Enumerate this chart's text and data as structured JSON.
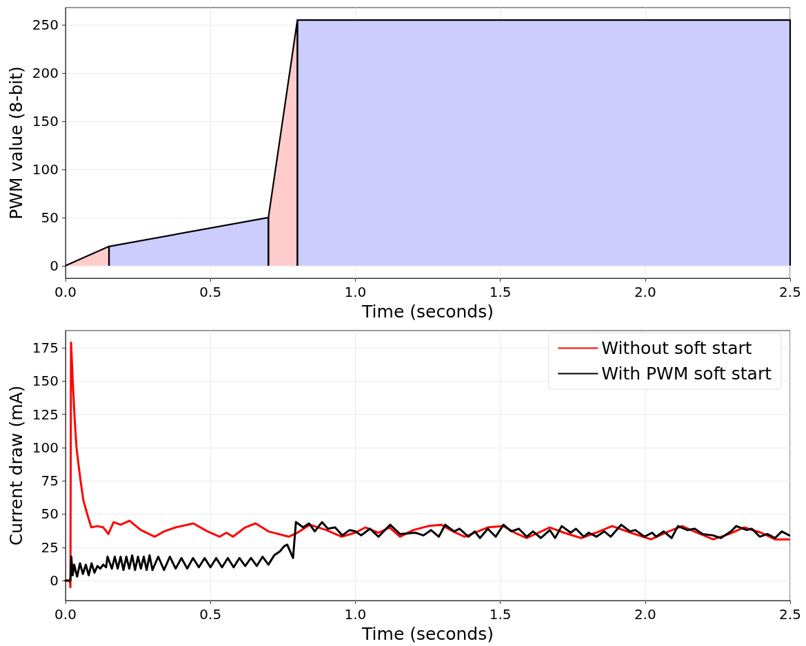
{
  "chart_data": [
    {
      "type": "area",
      "ylabel": "PWM value (8-bit)",
      "xlabel": "Time (seconds)",
      "xlim": [
        0,
        2.5
      ],
      "xticks": [
        {
          "value": 0,
          "label": "0.0"
        },
        0.5,
        {
          "value": 1,
          "label": "1.0"
        },
        1.5,
        {
          "value": 2,
          "label": "2.0"
        },
        2.5
      ],
      "ylim": [
        -13,
        268
      ],
      "yticks": [
        0,
        50,
        100,
        150,
        200,
        250
      ],
      "grid": true,
      "legend": false,
      "line_style": "solid",
      "series": [
        {
          "color": "#ffcccc",
          "x": [
            0,
            0.15,
            0.15
          ],
          "values": [
            0,
            20,
            0
          ]
        },
        {
          "color": "#ccccff",
          "x": [
            0.15,
            0.15,
            0.7,
            0.7
          ],
          "values": [
            0,
            20,
            50,
            0
          ]
        },
        {
          "color": "#ffcccc",
          "x": [
            0.7,
            0.7,
            0.8,
            0.8
          ],
          "values": [
            0,
            50,
            255,
            0
          ]
        },
        {
          "color": "#ccccff",
          "x": [
            0.8,
            0.8,
            2.5,
            2.5
          ],
          "values": [
            0,
            255,
            255,
            0
          ]
        }
      ]
    },
    {
      "type": "line",
      "ylabel": "Current draw (mA)",
      "xlabel": "Time (seconds)",
      "xlim": [
        0,
        2.5
      ],
      "xticks": [
        {
          "value": 0,
          "label": "0.0"
        },
        0.5,
        {
          "value": 1,
          "label": "1.0"
        },
        1.5,
        {
          "value": 2,
          "label": "2.0"
        },
        2.5
      ],
      "ylim": [
        -15,
        188
      ],
      "yticks": [
        0,
        25,
        50,
        75,
        100,
        125,
        150,
        175
      ],
      "grid": true,
      "legend": "top right",
      "line_style": "solid",
      "series": [
        {
          "name": "Without soft start",
          "color": "#ff0000",
          "x": [
            0,
            0.015,
            0.017,
            0.019,
            0.021,
            0.025,
            0.032,
            0.038,
            0.045,
            0.052,
            0.062,
            0.075,
            0.089,
            0.11,
            0.13,
            0.148,
            0.166,
            0.19,
            0.221,
            0.26,
            0.308,
            0.34,
            0.38,
            0.441,
            0.49,
            0.532,
            0.555,
            0.578,
            0.62,
            0.656,
            0.7,
            0.77,
            0.8,
            0.843,
            0.9,
            0.953,
            1.0,
            1.035,
            1.08,
            1.118,
            1.154,
            1.2,
            1.252,
            1.296,
            1.337,
            1.377,
            1.457,
            1.511,
            1.55,
            1.591,
            1.671,
            1.72,
            1.779,
            1.83,
            1.886,
            1.95,
            2.02,
            2.07,
            2.127,
            2.18,
            2.234,
            2.29,
            2.341,
            2.4,
            2.448,
            2.497
          ],
          "values": [
            0,
            0,
            -5,
            179,
            170,
            150,
            120,
            100,
            87,
            75,
            60,
            50,
            40,
            41,
            40,
            35,
            44,
            42,
            45,
            38,
            33,
            37,
            40,
            43,
            37,
            33,
            36,
            33,
            40,
            43,
            37,
            33,
            36,
            42,
            38,
            33,
            36,
            40,
            36,
            40,
            33,
            38,
            41,
            42,
            37,
            33,
            40,
            41,
            36,
            32,
            40,
            36,
            32,
            36,
            41,
            36,
            31,
            36,
            41,
            36,
            31,
            35,
            40,
            36,
            31,
            31
          ]
        },
        {
          "name": "With PWM soft start",
          "color": "#000000",
          "x": [
            0,
            0.017,
            0.02,
            0.025,
            0.03,
            0.04,
            0.05,
            0.06,
            0.07,
            0.08,
            0.09,
            0.1,
            0.11,
            0.12,
            0.13,
            0.14,
            0.145,
            0.16,
            0.17,
            0.18,
            0.19,
            0.2,
            0.21,
            0.22,
            0.23,
            0.24,
            0.25,
            0.26,
            0.27,
            0.28,
            0.29,
            0.3,
            0.32,
            0.34,
            0.36,
            0.38,
            0.4,
            0.42,
            0.44,
            0.46,
            0.48,
            0.5,
            0.52,
            0.54,
            0.56,
            0.58,
            0.6,
            0.62,
            0.64,
            0.66,
            0.68,
            0.7,
            0.72,
            0.74,
            0.755,
            0.765,
            0.775,
            0.785,
            0.795,
            0.82,
            0.84,
            0.86,
            0.885,
            0.905,
            0.93,
            0.955,
            0.98,
            1.0,
            1.02,
            1.05,
            1.08,
            1.12,
            1.154,
            1.207,
            1.235,
            1.261,
            1.288,
            1.31,
            1.341,
            1.359,
            1.39,
            1.412,
            1.43,
            1.457,
            1.484,
            1.511,
            1.538,
            1.564,
            1.591,
            1.613,
            1.64,
            1.671,
            1.689,
            1.712,
            1.743,
            1.761,
            1.788,
            1.805,
            1.832,
            1.859,
            1.881,
            1.917,
            1.948,
            1.966,
            1.997,
            2.024,
            2.038,
            2.064,
            2.091,
            2.113,
            2.145,
            2.171,
            2.198,
            2.234,
            2.261,
            2.296,
            2.314,
            2.35,
            2.368,
            2.395,
            2.421,
            2.448,
            2.471,
            2.497
          ],
          "values": [
            0,
            0,
            18,
            4,
            12,
            3,
            13,
            5,
            12,
            4,
            13,
            6,
            11,
            9,
            12,
            10,
            18,
            9,
            18,
            9,
            18,
            8,
            18,
            9,
            19,
            8,
            18,
            9,
            18,
            8,
            19,
            8,
            18,
            8,
            18,
            9,
            17,
            9,
            17,
            10,
            17,
            10,
            17,
            10,
            17,
            10,
            17,
            11,
            17,
            11,
            18,
            12,
            19,
            22,
            26,
            27,
            22,
            17,
            44,
            40,
            43,
            37,
            44,
            39,
            40,
            34,
            38,
            37,
            34,
            39,
            33,
            42,
            35,
            36,
            34,
            38,
            33,
            42,
            37,
            39,
            33,
            37,
            32,
            39,
            33,
            42,
            37,
            39,
            33,
            37,
            32,
            38,
            32,
            41,
            36,
            39,
            33,
            36,
            33,
            37,
            33,
            42,
            37,
            38,
            33,
            36,
            33,
            37,
            32,
            41,
            38,
            39,
            35,
            34,
            32,
            37,
            41,
            38,
            39,
            33,
            35,
            32,
            37,
            34
          ]
        }
      ]
    }
  ]
}
